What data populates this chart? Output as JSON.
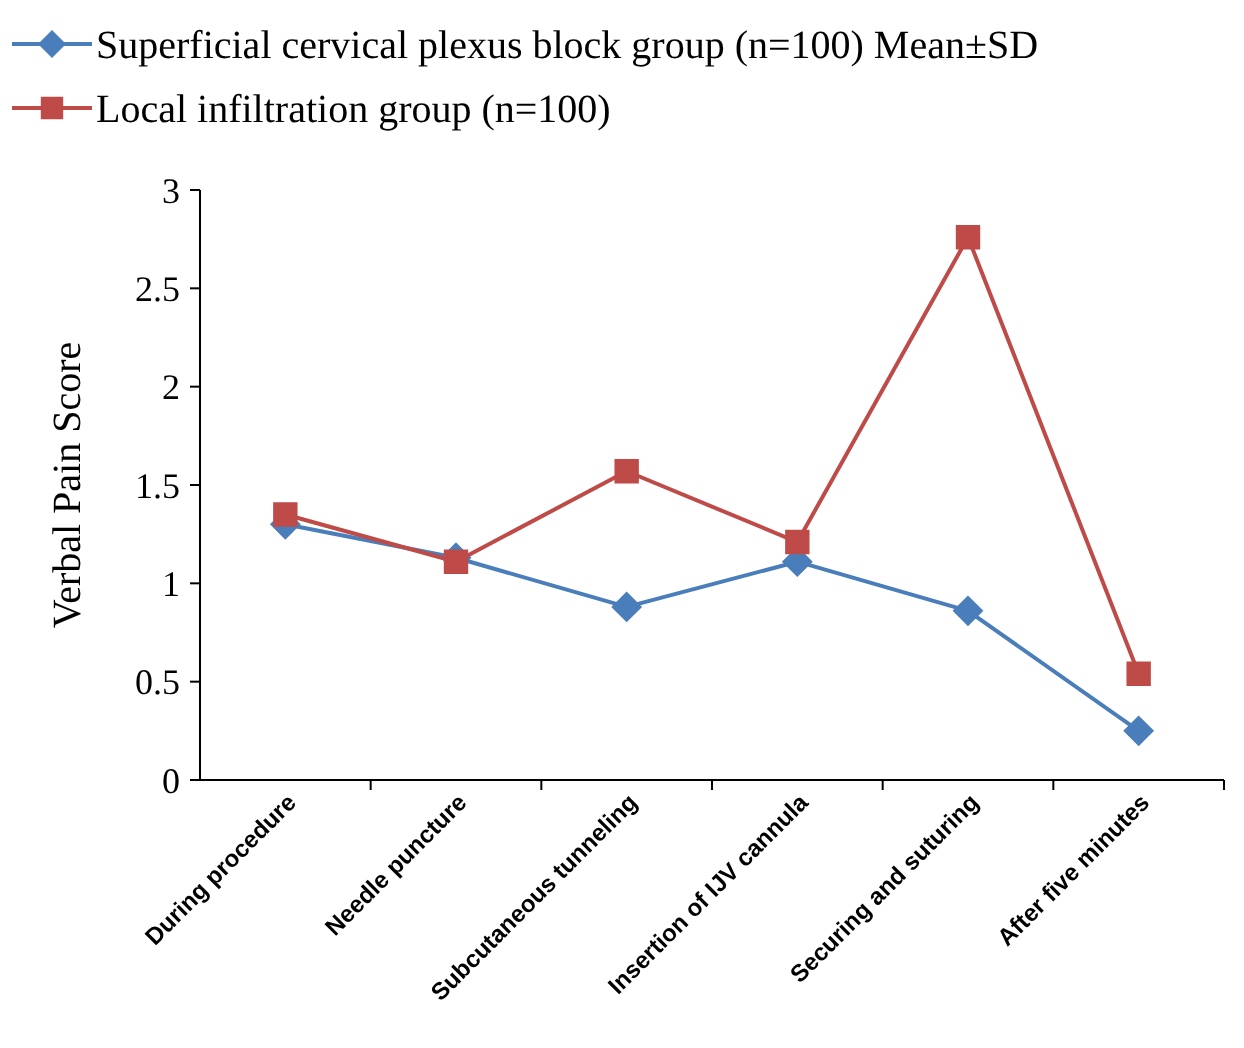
{
  "chart_data": {
    "type": "line",
    "ylabel": "Verbal Pain Score",
    "categories": [
      "During procedure",
      "Needle puncture",
      "Subcutaneous tunneling",
      "Insertion of IJV cannula",
      "Securing and suturing",
      "After five minutes"
    ],
    "series": [
      {
        "name": "Superficial cervical plexus block group (n=100) Mean±SD",
        "color": "#4a7ebb",
        "marker": "diamond",
        "values": [
          1.3,
          1.13,
          0.88,
          1.11,
          0.86,
          0.25
        ]
      },
      {
        "name": "Local infiltration group (n=100)",
        "color": "#be4b48",
        "marker": "square",
        "values": [
          1.35,
          1.11,
          1.57,
          1.21,
          2.76,
          0.54
        ]
      }
    ],
    "ylim": [
      0,
      3
    ],
    "yticks": [
      0,
      0.5,
      1,
      1.5,
      2,
      2.5,
      3
    ],
    "grid": false,
    "legend": "top left"
  }
}
